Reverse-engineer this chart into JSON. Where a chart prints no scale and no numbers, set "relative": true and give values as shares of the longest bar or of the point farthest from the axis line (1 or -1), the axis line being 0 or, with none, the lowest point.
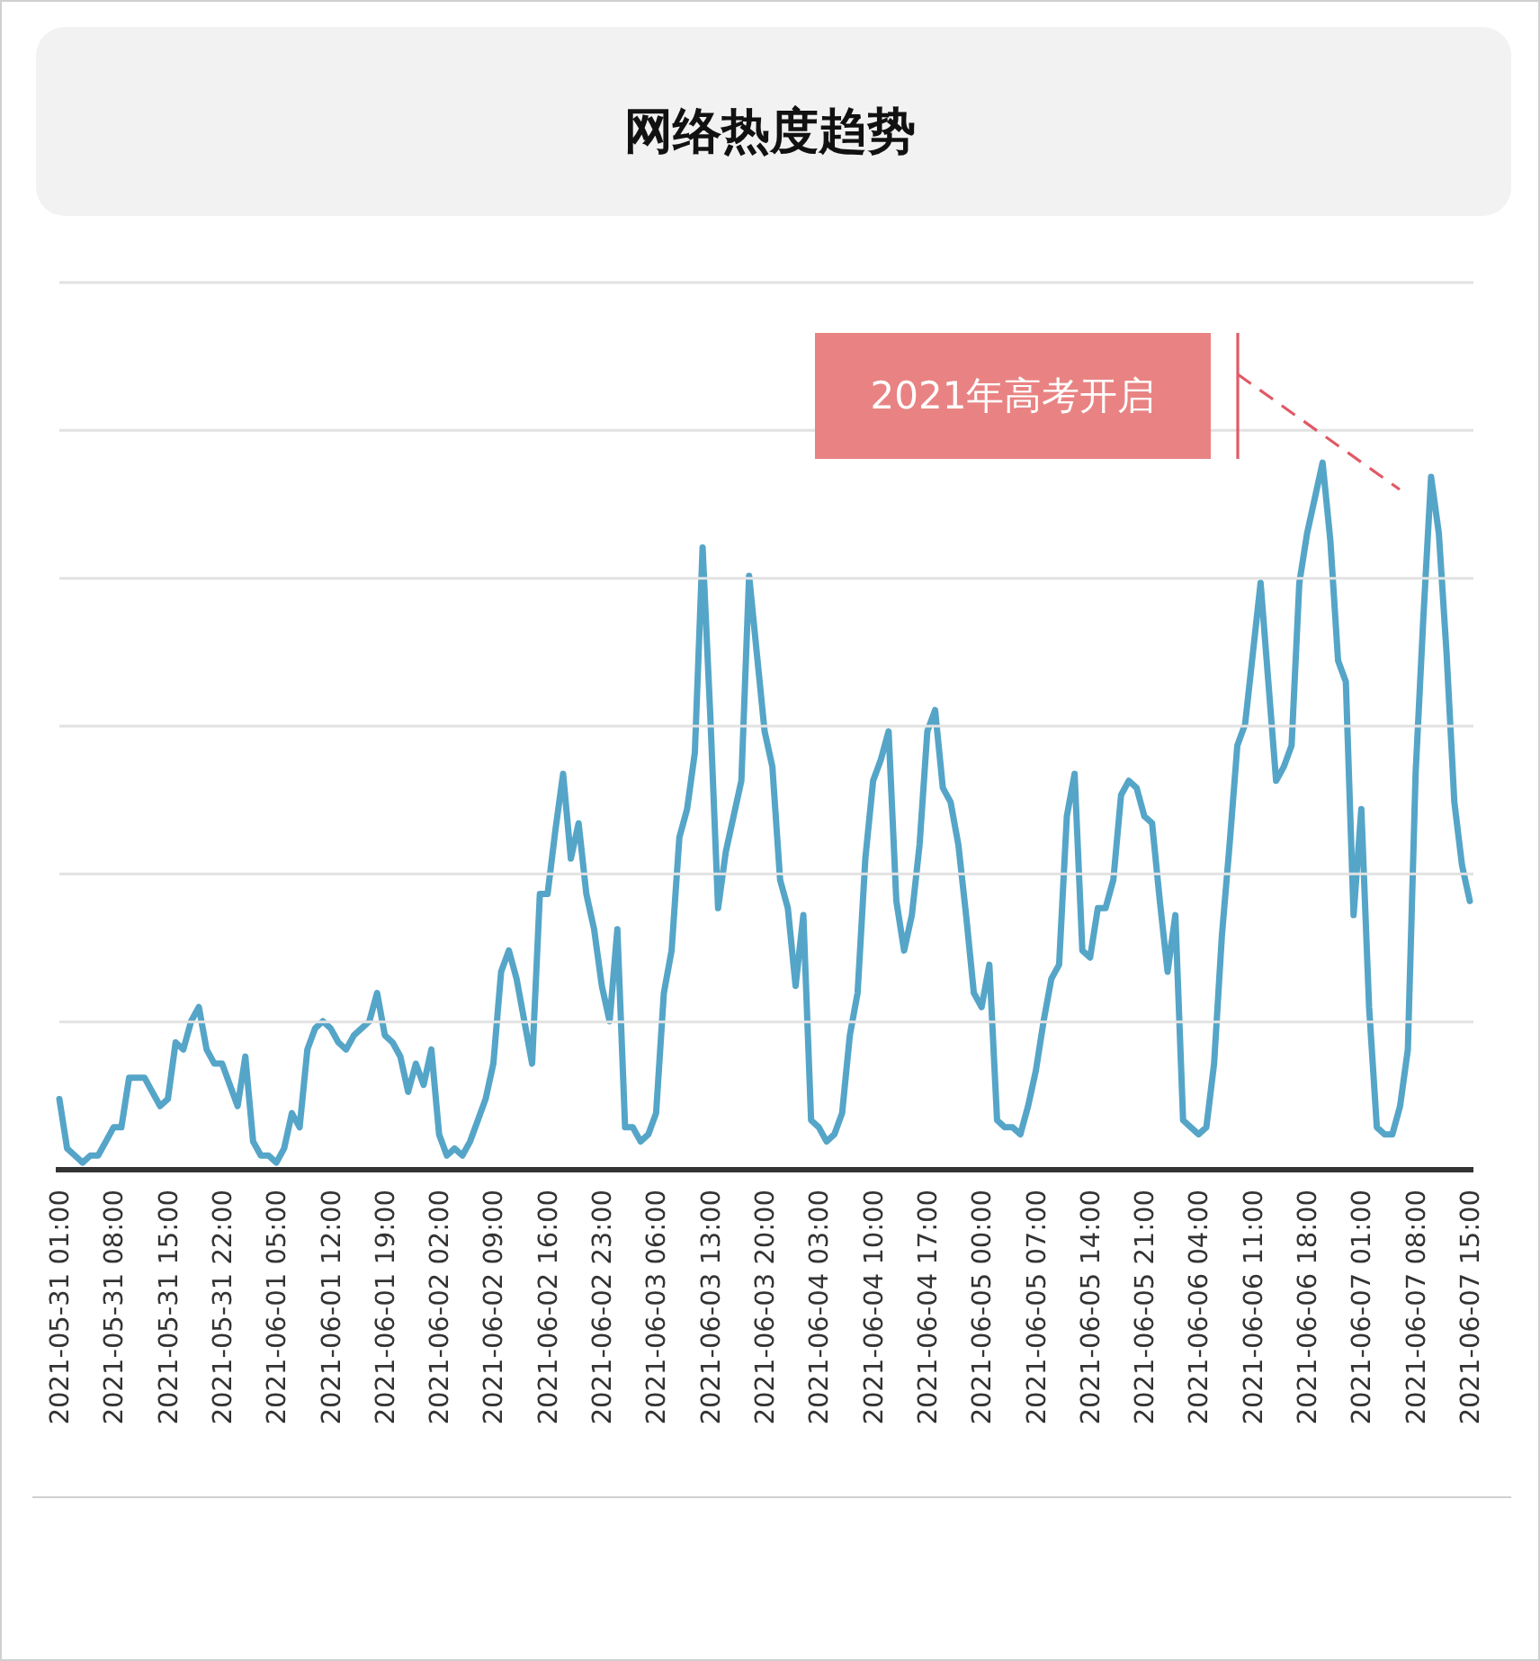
{
  "chart_data": {
    "type": "line",
    "title": "网络热度趋势",
    "relative": true,
    "marker": "none",
    "line_style": "solid",
    "xlim": [
      "2021-05-31T01:00",
      "2021-06-07T15:00"
    ],
    "xticks": [
      {
        "value": "2021-05-31T01:00",
        "label": "2021-05-31 01:00"
      },
      {
        "value": "2021-05-31T08:00",
        "label": "2021-05-31 08:00"
      },
      {
        "value": "2021-05-31T15:00",
        "label": "2021-05-31 15:00"
      },
      {
        "value": "2021-05-31T22:00",
        "label": "2021-05-31 22:00"
      },
      {
        "value": "2021-06-01T05:00",
        "label": "2021-06-01 05:00"
      },
      {
        "value": "2021-06-01T12:00",
        "label": "2021-06-01 12:00"
      },
      {
        "value": "2021-06-01T19:00",
        "label": "2021-06-01 19:00"
      },
      {
        "value": "2021-06-02T02:00",
        "label": "2021-06-02 02:00"
      },
      {
        "value": "2021-06-02T09:00",
        "label": "2021-06-02 09:00"
      },
      {
        "value": "2021-06-02T16:00",
        "label": "2021-06-02 16:00"
      },
      {
        "value": "2021-06-02T23:00",
        "label": "2021-06-02 23:00"
      },
      {
        "value": "2021-06-03T06:00",
        "label": "2021-06-03 06:00"
      },
      {
        "value": "2021-06-03T13:00",
        "label": "2021-06-03 13:00"
      },
      {
        "value": "2021-06-03T20:00",
        "label": "2021-06-03 20:00"
      },
      {
        "value": "2021-06-04T03:00",
        "label": "2021-06-04 03:00"
      },
      {
        "value": "2021-06-04T10:00",
        "label": "2021-06-04 10:00"
      },
      {
        "value": "2021-06-04T17:00",
        "label": "2021-06-04 17:00"
      },
      {
        "value": "2021-06-05T00:00",
        "label": "2021-06-05 00:00"
      },
      {
        "value": "2021-06-05T07:00",
        "label": "2021-06-05 07:00"
      },
      {
        "value": "2021-06-05T14:00",
        "label": "2021-06-05 14:00"
      },
      {
        "value": "2021-06-05T21:00",
        "label": "2021-06-05 21:00"
      },
      {
        "value": "2021-06-06T04:00",
        "label": "2021-06-06 04:00"
      },
      {
        "value": "2021-06-06T11:00",
        "label": "2021-06-06 11:00"
      },
      {
        "value": "2021-06-06T18:00",
        "label": "2021-06-06 18:00"
      },
      {
        "value": "2021-06-07T01:00",
        "label": "2021-06-07 01:00"
      },
      {
        "value": "2021-06-07T08:00",
        "label": "2021-06-07 08:00"
      },
      {
        "value": "2021-06-07T15:00",
        "label": "2021-06-07 15:00"
      }
    ],
    "annotations": [
      "2021年高考开启"
    ],
    "series": [
      {
        "color": "#55a5c8",
        "x": [
          "2021-05-31T01:00",
          "2021-05-31T02:00",
          "2021-05-31T03:00",
          "2021-05-31T04:00",
          "2021-05-31T05:00",
          "2021-05-31T06:00",
          "2021-05-31T07:00",
          "2021-05-31T08:00",
          "2021-05-31T09:00",
          "2021-05-31T10:00",
          "2021-05-31T11:00",
          "2021-05-31T12:00",
          "2021-05-31T13:00",
          "2021-05-31T14:00",
          "2021-05-31T15:00",
          "2021-05-31T16:00",
          "2021-05-31T17:00",
          "2021-05-31T18:00",
          "2021-05-31T19:00",
          "2021-05-31T20:00",
          "2021-05-31T21:00",
          "2021-05-31T22:00",
          "2021-05-31T23:00",
          "2021-06-01T00:00",
          "2021-06-01T01:00",
          "2021-06-01T02:00",
          "2021-06-01T03:00",
          "2021-06-01T04:00",
          "2021-06-01T05:00",
          "2021-06-01T06:00",
          "2021-06-01T07:00",
          "2021-06-01T08:00",
          "2021-06-01T09:00",
          "2021-06-01T10:00",
          "2021-06-01T11:00",
          "2021-06-01T12:00",
          "2021-06-01T13:00",
          "2021-06-01T14:00",
          "2021-06-01T15:00",
          "2021-06-01T16:00",
          "2021-06-01T17:00",
          "2021-06-01T18:00",
          "2021-06-01T19:00",
          "2021-06-01T20:00",
          "2021-06-01T21:00",
          "2021-06-01T22:00",
          "2021-06-01T23:00",
          "2021-06-02T00:00",
          "2021-06-02T01:00",
          "2021-06-02T02:00",
          "2021-06-02T03:00",
          "2021-06-02T04:00",
          "2021-06-02T05:00",
          "2021-06-02T06:00",
          "2021-06-02T07:00",
          "2021-06-02T08:00",
          "2021-06-02T09:00",
          "2021-06-02T10:00",
          "2021-06-02T11:00",
          "2021-06-02T12:00",
          "2021-06-02T13:00",
          "2021-06-02T14:00",
          "2021-06-02T15:00",
          "2021-06-02T16:00",
          "2021-06-02T17:00",
          "2021-06-02T18:00",
          "2021-06-02T19:00",
          "2021-06-02T20:00",
          "2021-06-02T21:00",
          "2021-06-02T22:00",
          "2021-06-02T23:00",
          "2021-06-03T00:00",
          "2021-06-03T01:00",
          "2021-06-03T02:00",
          "2021-06-03T03:00",
          "2021-06-03T04:00",
          "2021-06-03T05:00",
          "2021-06-03T06:00",
          "2021-06-03T07:00",
          "2021-06-03T08:00",
          "2021-06-03T09:00",
          "2021-06-03T10:00",
          "2021-06-03T11:00",
          "2021-06-03T12:00",
          "2021-06-03T13:00",
          "2021-06-03T14:00",
          "2021-06-03T15:00",
          "2021-06-03T16:00",
          "2021-06-03T17:00",
          "2021-06-03T18:00",
          "2021-06-03T19:00",
          "2021-06-03T20:00",
          "2021-06-03T21:00",
          "2021-06-03T22:00",
          "2021-06-03T23:00",
          "2021-06-04T00:00",
          "2021-06-04T01:00",
          "2021-06-04T02:00",
          "2021-06-04T03:00",
          "2021-06-04T04:00",
          "2021-06-04T05:00",
          "2021-06-04T06:00",
          "2021-06-04T07:00",
          "2021-06-04T08:00",
          "2021-06-04T09:00",
          "2021-06-04T10:00",
          "2021-06-04T11:00",
          "2021-06-04T12:00",
          "2021-06-04T13:00",
          "2021-06-04T14:00",
          "2021-06-04T15:00",
          "2021-06-04T16:00",
          "2021-06-04T17:00",
          "2021-06-04T18:00",
          "2021-06-04T19:00",
          "2021-06-04T20:00",
          "2021-06-04T21:00",
          "2021-06-04T22:00",
          "2021-06-04T23:00",
          "2021-06-05T00:00",
          "2021-06-05T01:00",
          "2021-06-05T02:00",
          "2021-06-05T03:00",
          "2021-06-05T04:00",
          "2021-06-05T05:00",
          "2021-06-05T06:00",
          "2021-06-05T07:00",
          "2021-06-05T08:00",
          "2021-06-05T09:00",
          "2021-06-05T10:00",
          "2021-06-05T11:00",
          "2021-06-05T12:00",
          "2021-06-05T13:00",
          "2021-06-05T14:00",
          "2021-06-05T15:00",
          "2021-06-05T16:00",
          "2021-06-05T17:00",
          "2021-06-05T18:00",
          "2021-06-05T19:00",
          "2021-06-05T20:00",
          "2021-06-05T21:00",
          "2021-06-05T22:00",
          "2021-06-05T23:00",
          "2021-06-06T00:00",
          "2021-06-06T01:00",
          "2021-06-06T02:00",
          "2021-06-06T03:00",
          "2021-06-06T04:00",
          "2021-06-06T05:00",
          "2021-06-06T06:00",
          "2021-06-06T07:00",
          "2021-06-06T08:00",
          "2021-06-06T09:00",
          "2021-06-06T10:00",
          "2021-06-06T11:00",
          "2021-06-06T12:00",
          "2021-06-06T13:00",
          "2021-06-06T14:00",
          "2021-06-06T15:00",
          "2021-06-06T16:00",
          "2021-06-06T17:00",
          "2021-06-06T18:00",
          "2021-06-06T19:00",
          "2021-06-06T20:00",
          "2021-06-06T21:00",
          "2021-06-06T22:00",
          "2021-06-06T23:00",
          "2021-06-07T00:00",
          "2021-06-07T01:00",
          "2021-06-07T02:00",
          "2021-06-07T03:00",
          "2021-06-07T04:00",
          "2021-06-07T05:00",
          "2021-06-07T06:00",
          "2021-06-07T07:00",
          "2021-06-07T08:00",
          "2021-06-07T09:00",
          "2021-06-07T10:00",
          "2021-06-07T11:00",
          "2021-06-07T12:00",
          "2021-06-07T13:00",
          "2021-06-07T14:00",
          "2021-06-07T15:00"
        ],
        "values": [
          0.1,
          0.03,
          0.02,
          0.01,
          0.02,
          0.02,
          0.04,
          0.06,
          0.06,
          0.13,
          0.13,
          0.13,
          0.11,
          0.09,
          0.1,
          0.18,
          0.17,
          0.21,
          0.23,
          0.17,
          0.15,
          0.15,
          0.12,
          0.09,
          0.16,
          0.04,
          0.02,
          0.02,
          0.01,
          0.03,
          0.08,
          0.06,
          0.17,
          0.2,
          0.21,
          0.2,
          0.18,
          0.17,
          0.19,
          0.2,
          0.21,
          0.25,
          0.19,
          0.18,
          0.16,
          0.11,
          0.15,
          0.12,
          0.17,
          0.05,
          0.02,
          0.03,
          0.02,
          0.04,
          0.07,
          0.1,
          0.15,
          0.28,
          0.31,
          0.27,
          0.21,
          0.15,
          0.39,
          0.39,
          0.48,
          0.56,
          0.44,
          0.49,
          0.39,
          0.34,
          0.26,
          0.21,
          0.34,
          0.06,
          0.06,
          0.04,
          0.05,
          0.08,
          0.25,
          0.31,
          0.47,
          0.51,
          0.59,
          0.88,
          0.64,
          0.37,
          0.45,
          0.5,
          0.55,
          0.84,
          0.73,
          0.62,
          0.57,
          0.41,
          0.37,
          0.26,
          0.36,
          0.07,
          0.06,
          0.04,
          0.05,
          0.08,
          0.19,
          0.25,
          0.44,
          0.55,
          0.58,
          0.62,
          0.38,
          0.31,
          0.36,
          0.46,
          0.62,
          0.65,
          0.54,
          0.52,
          0.46,
          0.36,
          0.25,
          0.23,
          0.29,
          0.07,
          0.06,
          0.06,
          0.05,
          0.09,
          0.14,
          0.21,
          0.27,
          0.29,
          0.5,
          0.56,
          0.31,
          0.3,
          0.37,
          0.37,
          0.41,
          0.53,
          0.55,
          0.54,
          0.5,
          0.49,
          0.38,
          0.28,
          0.36,
          0.07,
          0.06,
          0.05,
          0.06,
          0.15,
          0.33,
          0.46,
          0.6,
          0.63,
          0.73,
          0.83,
          0.69,
          0.55,
          0.57,
          0.6,
          0.83,
          0.9,
          0.95,
          1.0,
          0.89,
          0.72,
          0.69,
          0.36,
          0.51,
          0.23,
          0.06,
          0.05,
          0.05,
          0.09,
          0.17,
          0.56,
          0.78,
          0.98,
          0.9,
          0.73,
          0.52,
          0.43,
          0.38
        ]
      }
    ]
  }
}
